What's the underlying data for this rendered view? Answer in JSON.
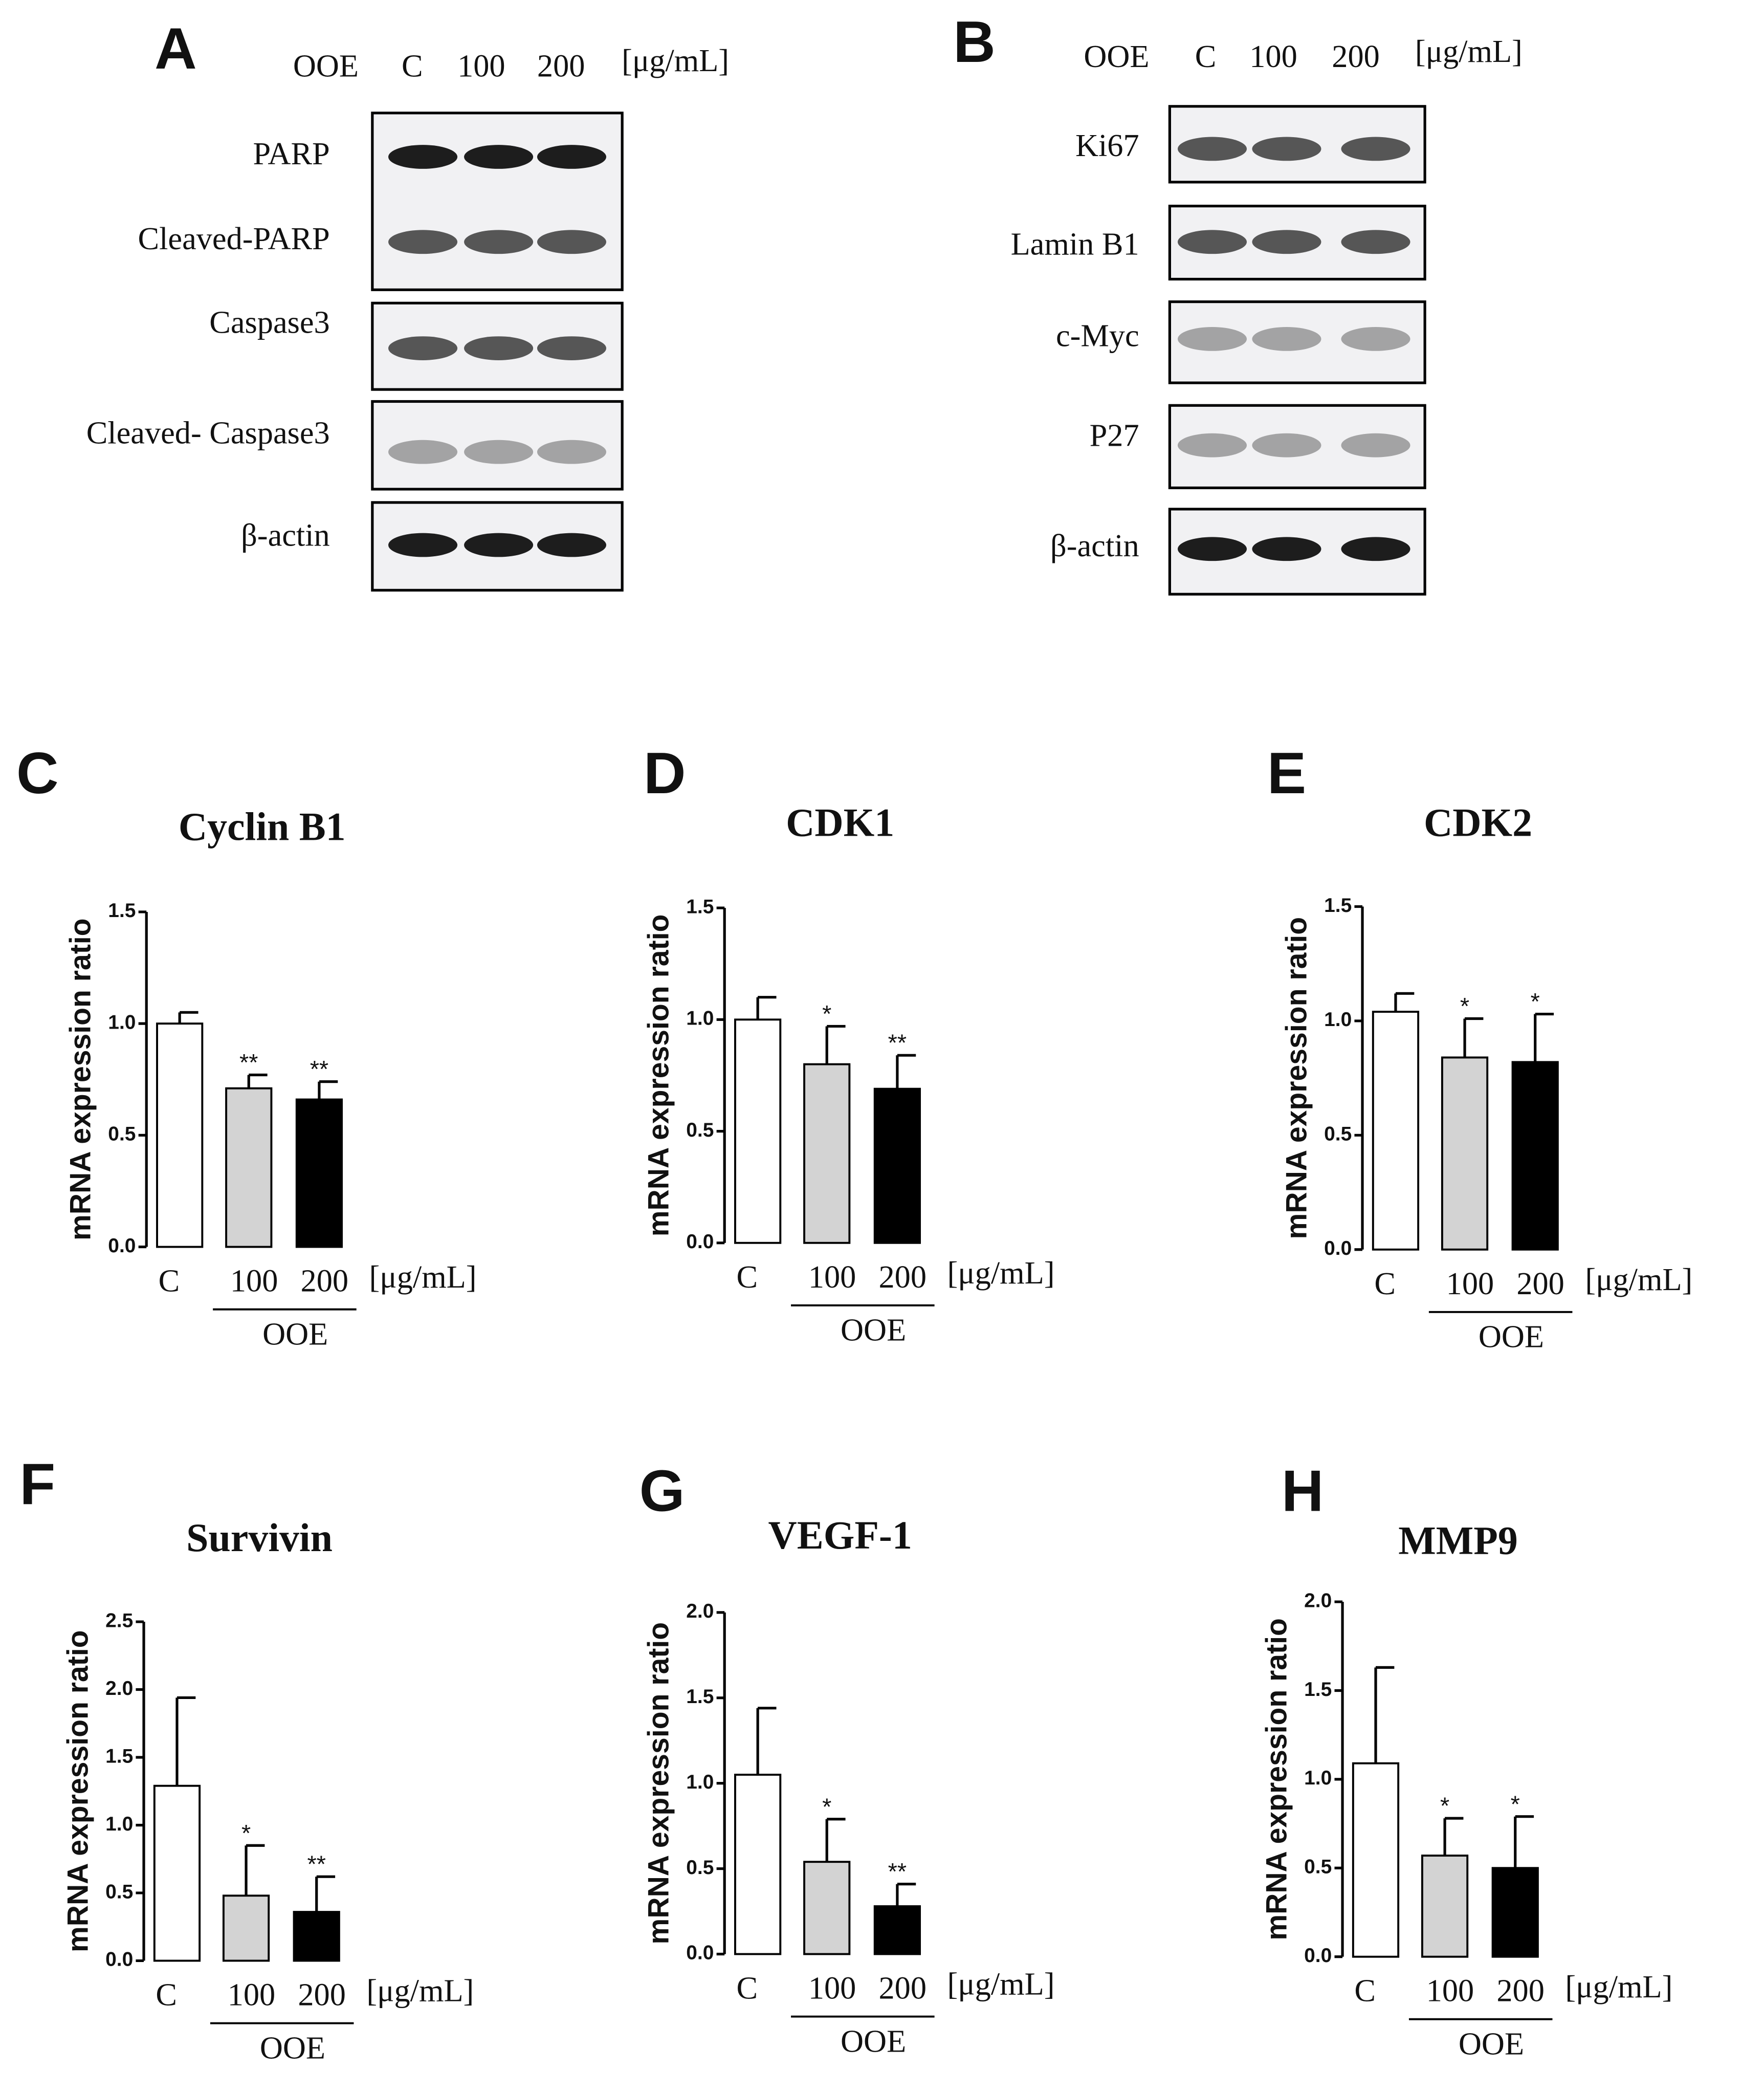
{
  "blots": [
    {
      "panel": "A",
      "treatment": "OOE",
      "lanes": [
        "C",
        "100",
        "200"
      ],
      "unit": "[μg/mL]",
      "bands": [
        "PARP",
        "Cleaved-PARP",
        "Caspase3",
        "Cleaved- Caspase3",
        "β-actin"
      ]
    },
    {
      "panel": "B",
      "treatment": "OOE",
      "lanes": [
        "C",
        "100",
        "200"
      ],
      "unit": "[μg/mL]",
      "bands": [
        "Ki67",
        "Lamin B1",
        "c-Myc",
        "P27",
        "β-actin"
      ]
    }
  ],
  "chart_data": [
    {
      "type": "bar",
      "panel": "C",
      "title": "Cyclin B1",
      "ylabel": "mRNA expression ratio",
      "categories": [
        "C",
        "100",
        "200"
      ],
      "values": [
        1.0,
        0.71,
        0.66
      ],
      "errors": [
        0.05,
        0.06,
        0.08
      ],
      "annotations": [
        null,
        "**",
        "**"
      ],
      "colors": [
        "#ffffff",
        "#d3d3d3",
        "#000000"
      ],
      "unit": "[μg/mL]",
      "group_label": "OOE",
      "ylim": [
        0,
        1.5
      ],
      "yticks": [
        {
          "value": 0,
          "label": "0.0"
        },
        0.5,
        {
          "value": 1,
          "label": "1.0"
        },
        1.5
      ]
    },
    {
      "type": "bar",
      "panel": "D",
      "title": "CDK1",
      "ylabel": "mRNA expression ratio",
      "categories": [
        "C",
        "100",
        "200"
      ],
      "values": [
        1.0,
        0.8,
        0.69
      ],
      "errors": [
        0.1,
        0.17,
        0.15
      ],
      "annotations": [
        null,
        "*",
        "**"
      ],
      "colors": [
        "#ffffff",
        "#d3d3d3",
        "#000000"
      ],
      "unit": "[μg/mL]",
      "group_label": "OOE",
      "ylim": [
        0,
        1.5
      ],
      "yticks": [
        {
          "value": 0,
          "label": "0.0"
        },
        0.5,
        {
          "value": 1,
          "label": "1.0"
        },
        1.5
      ]
    },
    {
      "type": "bar",
      "panel": "E",
      "title": "CDK2",
      "ylabel": "mRNA expression ratio",
      "categories": [
        "C",
        "100",
        "200"
      ],
      "values": [
        1.04,
        0.84,
        0.82
      ],
      "errors": [
        0.08,
        0.17,
        0.21
      ],
      "annotations": [
        null,
        "*",
        "*"
      ],
      "colors": [
        "#ffffff",
        "#d3d3d3",
        "#000000"
      ],
      "unit": "[μg/mL]",
      "group_label": "OOE",
      "ylim": [
        0,
        1.5
      ],
      "yticks": [
        {
          "value": 0,
          "label": "0.0"
        },
        0.5,
        {
          "value": 1,
          "label": "1.0"
        },
        1.5
      ]
    },
    {
      "type": "bar",
      "panel": "F",
      "title": "Survivin",
      "ylabel": "mRNA expression ratio",
      "categories": [
        "C",
        "100",
        "200"
      ],
      "values": [
        1.29,
        0.48,
        0.36
      ],
      "errors": [
        0.65,
        0.37,
        0.26
      ],
      "annotations": [
        null,
        "*",
        "**"
      ],
      "colors": [
        "#ffffff",
        "#d3d3d3",
        "#000000"
      ],
      "unit": "[μg/mL]",
      "group_label": "OOE",
      "ylim": [
        0,
        2.5
      ],
      "yticks": [
        {
          "value": 0,
          "label": "0.0"
        },
        0.5,
        {
          "value": 1,
          "label": "1.0"
        },
        1.5,
        {
          "value": 2,
          "label": "2.0"
        },
        2.5
      ]
    },
    {
      "type": "bar",
      "panel": "G",
      "title": "VEGF-1",
      "ylabel": "mRNA expression ratio",
      "categories": [
        "C",
        "100",
        "200"
      ],
      "values": [
        1.05,
        0.54,
        0.28
      ],
      "errors": [
        0.39,
        0.25,
        0.13
      ],
      "annotations": [
        null,
        "*",
        "**"
      ],
      "colors": [
        "#ffffff",
        "#d3d3d3",
        "#000000"
      ],
      "unit": "[μg/mL]",
      "group_label": "OOE",
      "ylim": [
        0,
        2
      ],
      "yticks": [
        {
          "value": 0,
          "label": "0.0"
        },
        0.5,
        {
          "value": 1,
          "label": "1.0"
        },
        1.5,
        {
          "value": 2,
          "label": "2.0"
        }
      ]
    },
    {
      "type": "bar",
      "panel": "H",
      "title": "MMP9",
      "ylabel": "mRNA expression ratio",
      "categories": [
        "C",
        "100",
        "200"
      ],
      "values": [
        1.09,
        0.57,
        0.5
      ],
      "errors": [
        0.54,
        0.21,
        0.29
      ],
      "annotations": [
        null,
        "*",
        "*"
      ],
      "colors": [
        "#ffffff",
        "#d3d3d3",
        "#000000"
      ],
      "unit": "[μg/mL]",
      "group_label": "OOE",
      "ylim": [
        0,
        2
      ],
      "yticks": [
        {
          "value": 0,
          "label": "0.0"
        },
        0.5,
        {
          "value": 1,
          "label": "1.0"
        },
        1.5,
        {
          "value": 2,
          "label": "2.0"
        }
      ]
    }
  ]
}
